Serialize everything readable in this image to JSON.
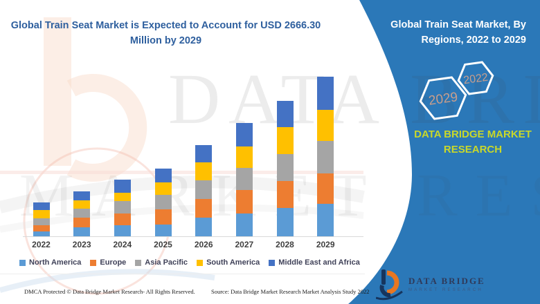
{
  "header": {
    "title": "Global Train Seat Market is Expected to Account for USD 2666.30 Million by 2029"
  },
  "banner": {
    "heading": "Global Train Seat Market, By Regions, 2022 to 2029",
    "hexagons": [
      {
        "year": "2029"
      },
      {
        "year": "2022"
      }
    ],
    "brand_line1": "DATA BRIDGE MARKET",
    "brand_line2": "RESEARCH",
    "accent_blue": "#2b78b8",
    "brand_text_color": "#c9d82a",
    "hex_year_color": "#c79e8d"
  },
  "logo": {
    "name_line1": "DATA BRIDGE",
    "name_line2": "MARKET RESEARCH"
  },
  "watermark": {
    "row1": "DATA BRIDGE",
    "row2": "MARKET RESEARCH"
  },
  "footer": {
    "left": "DMCA Protected © Data Bridge Market Research- All Rights Reserved.",
    "source": "Source: Data Bridge Market Research Market Analysis Study 2022"
  },
  "chart_data": {
    "type": "bar",
    "stacked": true,
    "title": "Global Train Seat Market is Expected to Account for USD 2666.30 Million by 2029",
    "subtitle": "Global Train Seat Market, By Regions, 2022 to 2029",
    "unit": "USD Million",
    "highlight_total_2029": 2666.3,
    "categories": [
      "2022",
      "2023",
      "2024",
      "2025",
      "2026",
      "2027",
      "2028",
      "2029"
    ],
    "series": [
      {
        "name": "North America",
        "color": "#5b9bd5",
        "values": [
          81,
          150,
          185,
          196,
          312,
          381,
          473,
          542
        ]
      },
      {
        "name": "Europe",
        "color": "#ed7d31",
        "values": [
          104,
          162,
          196,
          254,
          312,
          392,
          450,
          508
        ]
      },
      {
        "name": "Asia Pacific",
        "color": "#a5a5a5",
        "values": [
          115,
          150,
          208,
          242,
          312,
          369,
          450,
          542
        ]
      },
      {
        "name": "South America",
        "color": "#ffc000",
        "values": [
          139,
          139,
          139,
          208,
          300,
          358,
          450,
          519
        ]
      },
      {
        "name": "Middle East and Africa",
        "color": "#4472c4",
        "values": [
          127,
          150,
          219,
          231,
          289,
          404,
          450,
          555.3
        ]
      }
    ],
    "xlabel": "",
    "ylabel": "",
    "ylim": [
      0,
      2800
    ],
    "grid": false,
    "y_axis_visible": false,
    "legend_position": "bottom"
  }
}
